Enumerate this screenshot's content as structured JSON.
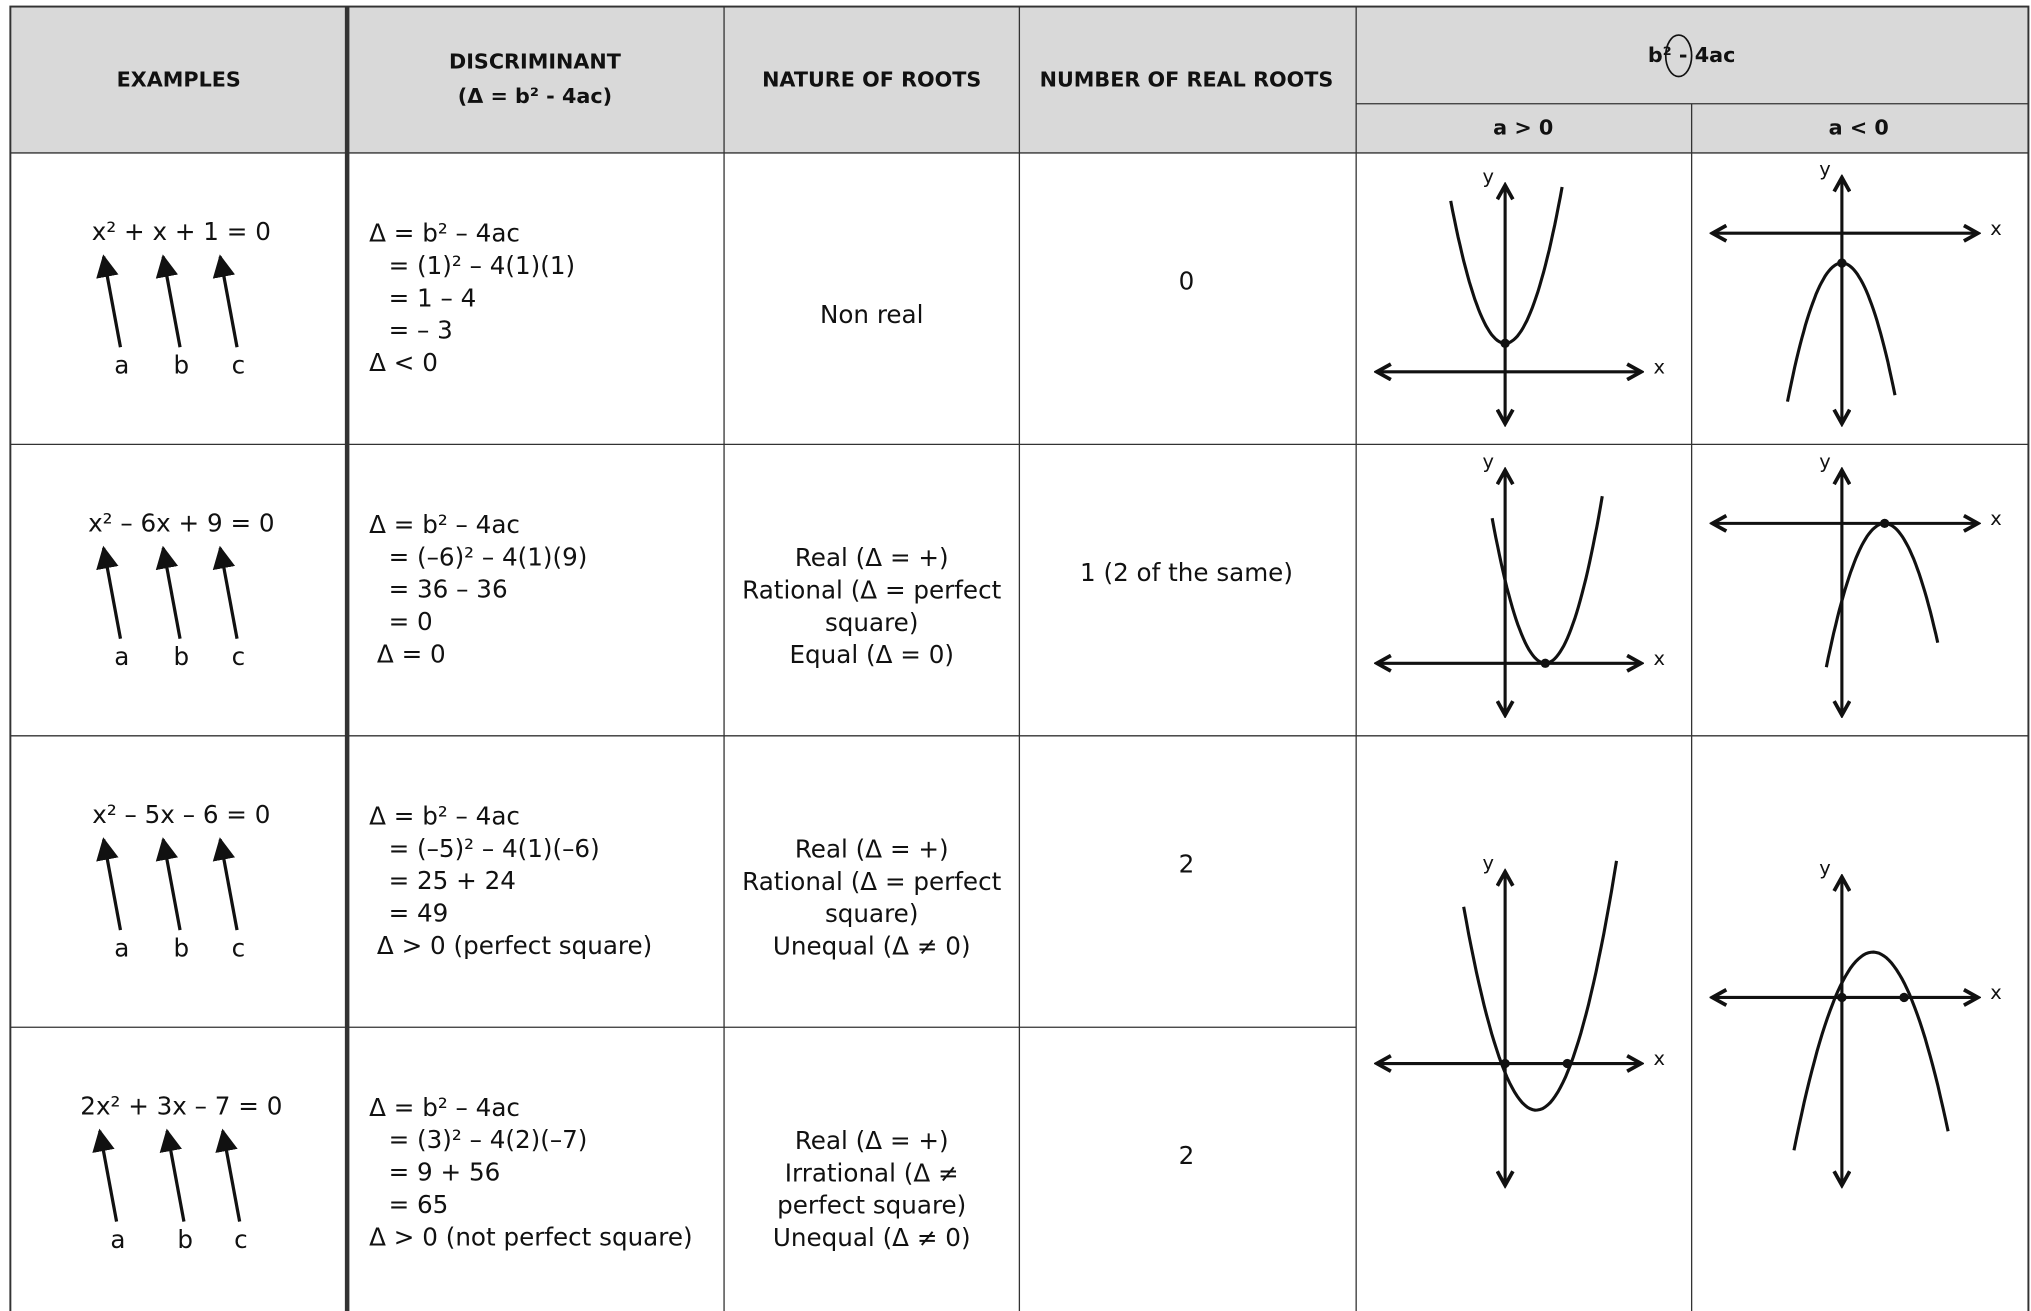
{
  "header": {
    "examples": "EXAMPLES",
    "discriminant": "DISCRIMINANT",
    "discriminant_formula": "(Δ = b² - 4ac)",
    "nature": "NATURE OF ROOTS",
    "count": "NUMBER OF REAL ROOTS",
    "graph_heading": [
      "b² - 4",
      "a",
      "c"
    ],
    "positive_a": "a > 0",
    "negative_a": "a < 0"
  },
  "rows": [
    {
      "equation": "x² + x + 1 = 0",
      "coefficients": [
        "a",
        "b",
        "c"
      ],
      "work": [
        "Δ = b² – 4ac",
        "= (1)² – 4(1)(1)",
        "= 1 – 4",
        "= – 3",
        "Δ < 0"
      ],
      "nature": [
        "Non real"
      ],
      "real_roots": "0"
    },
    {
      "equation": "x² – 6x + 9 = 0",
      "coefficients": [
        "a",
        "b",
        "c"
      ],
      "work": [
        "Δ = b² – 4ac",
        "= (–6)² – 4(1)(9)",
        "= 36 – 36",
        "= 0",
        "Δ = 0"
      ],
      "nature": [
        "Real (Δ = +)",
        "Rational (Δ = perfect",
        "square)",
        "Equal (Δ = 0)"
      ],
      "real_roots": "1 (2 of the same)"
    },
    {
      "equation": "x² – 5x – 6 = 0",
      "coefficients": [
        "a",
        "b",
        "c"
      ],
      "work": [
        "Δ = b² – 4ac",
        "= (–5)² – 4(1)(–6)",
        "= 25 + 24",
        "= 49",
        "Δ > 0 (perfect square)"
      ],
      "nature": [
        "Real (Δ = +)",
        "Rational (Δ = perfect",
        "square)",
        "Unequal (Δ ≠ 0)"
      ],
      "real_roots": "2"
    },
    {
      "equation": "2x² + 3x – 7 = 0",
      "coefficients": [
        "a",
        "b",
        "c"
      ],
      "work": [
        "Δ = b² – 4ac",
        "= (3)² – 4(2)(–7)",
        "= 9 + 56",
        "= 65",
        "Δ > 0 (not perfect square)"
      ],
      "nature": [
        "Real (Δ = +)",
        "Irrational (Δ ≠",
        "perfect square)",
        "Unequal (Δ ≠ 0)"
      ],
      "real_roots": "2"
    }
  ],
  "axis_labels": {
    "x": "x",
    "y": "y"
  }
}
